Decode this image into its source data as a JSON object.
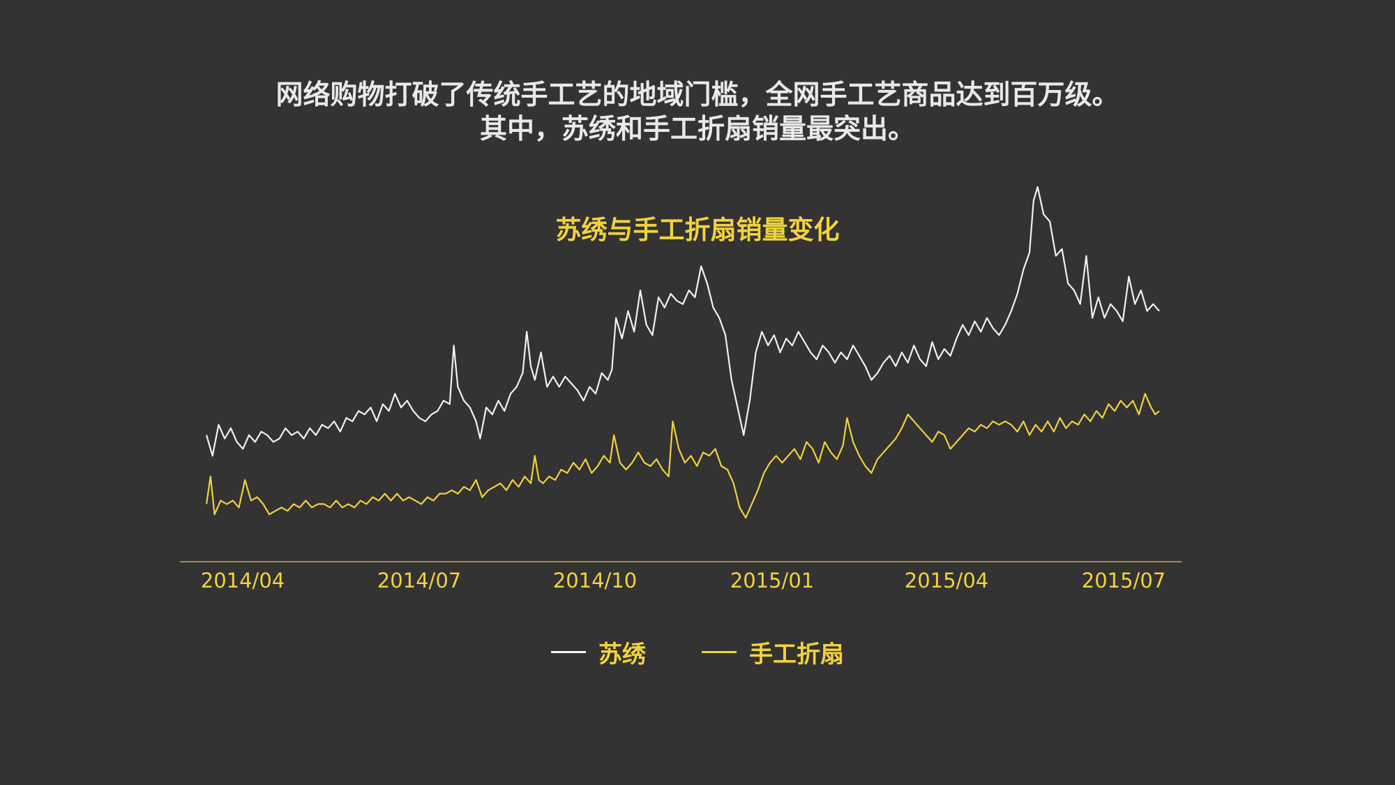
{
  "headline": {
    "line1": "网络购物打破了传统手工艺的地域门槛，全网手工艺商品达到百万级。",
    "line2": "其中，苏绣和手工折扇销量最突出。"
  },
  "colors": {
    "background": "#333333",
    "accent": "#f2d23f",
    "series_suxiu": "#f2f2f2",
    "series_shangong_zheshan": "#f2d23f",
    "axis": "#9c8e52"
  },
  "chart_data": {
    "type": "line",
    "title": "苏绣与手工折扇销量变化",
    "xlabel": "",
    "ylabel": "",
    "x_ticks": [
      "2014/04",
      "2014/07",
      "2014/10",
      "2015/01",
      "2015/04",
      "2015/07"
    ],
    "y_axis_visible": false,
    "grid": false,
    "legend_position": "bottom-center",
    "ylim": [
      0,
      100
    ],
    "series": [
      {
        "name": "苏绣",
        "color": "#f2f2f2",
        "points": [
          [
            0,
            26
          ],
          [
            3,
            20
          ],
          [
            6,
            29
          ],
          [
            9,
            25
          ],
          [
            12,
            28
          ],
          [
            15,
            24
          ],
          [
            18,
            22
          ],
          [
            21,
            26
          ],
          [
            24,
            24
          ],
          [
            27,
            27
          ],
          [
            30,
            26
          ],
          [
            33,
            24
          ],
          [
            36,
            25
          ],
          [
            39,
            28
          ],
          [
            42,
            26
          ],
          [
            45,
            27
          ],
          [
            48,
            25
          ],
          [
            51,
            28
          ],
          [
            54,
            26
          ],
          [
            57,
            29
          ],
          [
            60,
            28
          ],
          [
            63,
            30
          ],
          [
            66,
            27
          ],
          [
            69,
            31
          ],
          [
            72,
            30
          ],
          [
            75,
            33
          ],
          [
            78,
            32
          ],
          [
            81,
            34
          ],
          [
            84,
            30
          ],
          [
            87,
            35
          ],
          [
            90,
            33
          ],
          [
            93,
            38
          ],
          [
            96,
            34
          ],
          [
            99,
            36
          ],
          [
            102,
            33
          ],
          [
            105,
            31
          ],
          [
            108,
            30
          ],
          [
            111,
            32
          ],
          [
            114,
            33
          ],
          [
            117,
            36
          ],
          [
            120,
            35
          ],
          [
            122,
            52
          ],
          [
            124,
            40
          ],
          [
            127,
            36
          ],
          [
            130,
            34
          ],
          [
            133,
            30
          ],
          [
            135,
            25
          ],
          [
            138,
            34
          ],
          [
            141,
            32
          ],
          [
            144,
            36
          ],
          [
            147,
            33
          ],
          [
            150,
            38
          ],
          [
            153,
            40
          ],
          [
            156,
            44
          ],
          [
            158,
            56
          ],
          [
            160,
            46
          ],
          [
            162,
            42
          ],
          [
            165,
            50
          ],
          [
            168,
            40
          ],
          [
            171,
            43
          ],
          [
            174,
            40
          ],
          [
            177,
            43
          ],
          [
            180,
            41
          ],
          [
            183,
            39
          ],
          [
            186,
            36
          ],
          [
            189,
            40
          ],
          [
            192,
            38
          ],
          [
            195,
            44
          ],
          [
            198,
            42
          ],
          [
            200,
            45
          ],
          [
            202,
            60
          ],
          [
            205,
            54
          ],
          [
            208,
            62
          ],
          [
            211,
            56
          ],
          [
            214,
            68
          ],
          [
            217,
            58
          ],
          [
            220,
            55
          ],
          [
            223,
            66
          ],
          [
            226,
            63
          ],
          [
            229,
            67
          ],
          [
            232,
            65
          ],
          [
            235,
            64
          ],
          [
            238,
            68
          ],
          [
            241,
            66
          ],
          [
            244,
            75
          ],
          [
            247,
            70
          ],
          [
            250,
            63
          ],
          [
            253,
            60
          ],
          [
            256,
            55
          ],
          [
            259,
            42
          ],
          [
            262,
            34
          ],
          [
            265,
            26
          ],
          [
            268,
            36
          ],
          [
            271,
            50
          ],
          [
            274,
            56
          ],
          [
            277,
            52
          ],
          [
            280,
            55
          ],
          [
            283,
            50
          ],
          [
            286,
            54
          ],
          [
            289,
            52
          ],
          [
            292,
            56
          ],
          [
            295,
            53
          ],
          [
            298,
            50
          ],
          [
            301,
            48
          ],
          [
            304,
            52
          ],
          [
            307,
            50
          ],
          [
            310,
            47
          ],
          [
            313,
            50
          ],
          [
            316,
            48
          ],
          [
            319,
            52
          ],
          [
            322,
            49
          ],
          [
            325,
            46
          ],
          [
            328,
            42
          ],
          [
            331,
            44
          ],
          [
            334,
            47
          ],
          [
            337,
            49
          ],
          [
            340,
            46
          ],
          [
            343,
            50
          ],
          [
            346,
            47
          ],
          [
            349,
            52
          ],
          [
            352,
            48
          ],
          [
            355,
            46
          ],
          [
            358,
            53
          ],
          [
            361,
            48
          ],
          [
            364,
            51
          ],
          [
            367,
            49
          ],
          [
            370,
            54
          ],
          [
            373,
            58
          ],
          [
            376,
            55
          ],
          [
            379,
            59
          ],
          [
            382,
            56
          ],
          [
            385,
            60
          ],
          [
            388,
            57
          ],
          [
            391,
            55
          ],
          [
            394,
            58
          ],
          [
            397,
            62
          ],
          [
            400,
            67
          ],
          [
            403,
            74
          ],
          [
            406,
            79
          ],
          [
            408,
            94
          ],
          [
            410,
            98
          ],
          [
            413,
            90
          ],
          [
            416,
            88
          ],
          [
            419,
            78
          ],
          [
            422,
            80
          ],
          [
            425,
            70
          ],
          [
            428,
            68
          ],
          [
            431,
            64
          ],
          [
            434,
            78
          ],
          [
            437,
            60
          ],
          [
            440,
            66
          ],
          [
            443,
            60
          ],
          [
            446,
            64
          ],
          [
            449,
            62
          ],
          [
            452,
            59
          ],
          [
            455,
            72
          ],
          [
            458,
            64
          ],
          [
            461,
            68
          ],
          [
            464,
            62
          ],
          [
            467,
            64
          ],
          [
            470,
            62
          ]
        ]
      },
      {
        "name": "手工折扇",
        "color": "#f2d23f",
        "points": [
          [
            0,
            6
          ],
          [
            2,
            14
          ],
          [
            4,
            3
          ],
          [
            7,
            7
          ],
          [
            10,
            6
          ],
          [
            13,
            7
          ],
          [
            16,
            5
          ],
          [
            19,
            13
          ],
          [
            22,
            7
          ],
          [
            25,
            8
          ],
          [
            28,
            6
          ],
          [
            31,
            3
          ],
          [
            34,
            4
          ],
          [
            37,
            5
          ],
          [
            40,
            4
          ],
          [
            43,
            6
          ],
          [
            46,
            5
          ],
          [
            49,
            7
          ],
          [
            52,
            5
          ],
          [
            55,
            6
          ],
          [
            58,
            6
          ],
          [
            61,
            5
          ],
          [
            64,
            7
          ],
          [
            67,
            5
          ],
          [
            70,
            6
          ],
          [
            73,
            5
          ],
          [
            76,
            7
          ],
          [
            79,
            6
          ],
          [
            82,
            8
          ],
          [
            85,
            7
          ],
          [
            88,
            9
          ],
          [
            91,
            7
          ],
          [
            94,
            9
          ],
          [
            97,
            7
          ],
          [
            100,
            8
          ],
          [
            103,
            7
          ],
          [
            106,
            6
          ],
          [
            109,
            8
          ],
          [
            112,
            7
          ],
          [
            115,
            9
          ],
          [
            118,
            9
          ],
          [
            121,
            10
          ],
          [
            124,
            9
          ],
          [
            127,
            11
          ],
          [
            130,
            10
          ],
          [
            133,
            13
          ],
          [
            136,
            8
          ],
          [
            139,
            10
          ],
          [
            142,
            11
          ],
          [
            145,
            12
          ],
          [
            148,
            10
          ],
          [
            151,
            13
          ],
          [
            154,
            11
          ],
          [
            157,
            14
          ],
          [
            160,
            12
          ],
          [
            162,
            20
          ],
          [
            164,
            13
          ],
          [
            166,
            12
          ],
          [
            169,
            14
          ],
          [
            172,
            13
          ],
          [
            175,
            16
          ],
          [
            178,
            15
          ],
          [
            181,
            18
          ],
          [
            184,
            16
          ],
          [
            187,
            19
          ],
          [
            190,
            15
          ],
          [
            193,
            17
          ],
          [
            196,
            20
          ],
          [
            199,
            18
          ],
          [
            201,
            26
          ],
          [
            204,
            18
          ],
          [
            207,
            16
          ],
          [
            210,
            18
          ],
          [
            213,
            21
          ],
          [
            216,
            18
          ],
          [
            219,
            17
          ],
          [
            222,
            19
          ],
          [
            225,
            16
          ],
          [
            228,
            14
          ],
          [
            230,
            30
          ],
          [
            233,
            22
          ],
          [
            236,
            18
          ],
          [
            239,
            20
          ],
          [
            242,
            17
          ],
          [
            245,
            21
          ],
          [
            248,
            20
          ],
          [
            251,
            22
          ],
          [
            254,
            17
          ],
          [
            257,
            16
          ],
          [
            260,
            12
          ],
          [
            263,
            5
          ],
          [
            266,
            2
          ],
          [
            269,
            6
          ],
          [
            272,
            10
          ],
          [
            275,
            15
          ],
          [
            278,
            18
          ],
          [
            281,
            20
          ],
          [
            284,
            18
          ],
          [
            287,
            20
          ],
          [
            290,
            22
          ],
          [
            293,
            19
          ],
          [
            296,
            24
          ],
          [
            299,
            22
          ],
          [
            302,
            18
          ],
          [
            305,
            24
          ],
          [
            308,
            21
          ],
          [
            311,
            19
          ],
          [
            314,
            23
          ],
          [
            316,
            31
          ],
          [
            319,
            24
          ],
          [
            322,
            20
          ],
          [
            325,
            17
          ],
          [
            328,
            15
          ],
          [
            331,
            19
          ],
          [
            334,
            21
          ],
          [
            337,
            23
          ],
          [
            340,
            25
          ],
          [
            343,
            28
          ],
          [
            346,
            32
          ],
          [
            349,
            30
          ],
          [
            352,
            28
          ],
          [
            355,
            26
          ],
          [
            358,
            24
          ],
          [
            361,
            27
          ],
          [
            364,
            26
          ],
          [
            367,
            22
          ],
          [
            370,
            24
          ],
          [
            373,
            26
          ],
          [
            376,
            28
          ],
          [
            379,
            27
          ],
          [
            382,
            29
          ],
          [
            385,
            28
          ],
          [
            388,
            30
          ],
          [
            391,
            29
          ],
          [
            394,
            30
          ],
          [
            397,
            29
          ],
          [
            400,
            27
          ],
          [
            403,
            30
          ],
          [
            406,
            26
          ],
          [
            409,
            29
          ],
          [
            412,
            27
          ],
          [
            415,
            30
          ],
          [
            418,
            27
          ],
          [
            421,
            31
          ],
          [
            424,
            28
          ],
          [
            427,
            30
          ],
          [
            430,
            29
          ],
          [
            433,
            32
          ],
          [
            436,
            30
          ],
          [
            439,
            33
          ],
          [
            442,
            31
          ],
          [
            445,
            35
          ],
          [
            448,
            33
          ],
          [
            451,
            36
          ],
          [
            454,
            34
          ],
          [
            457,
            36
          ],
          [
            460,
            32
          ],
          [
            463,
            38
          ],
          [
            466,
            34
          ],
          [
            468,
            32
          ],
          [
            470,
            33
          ]
        ]
      }
    ]
  }
}
